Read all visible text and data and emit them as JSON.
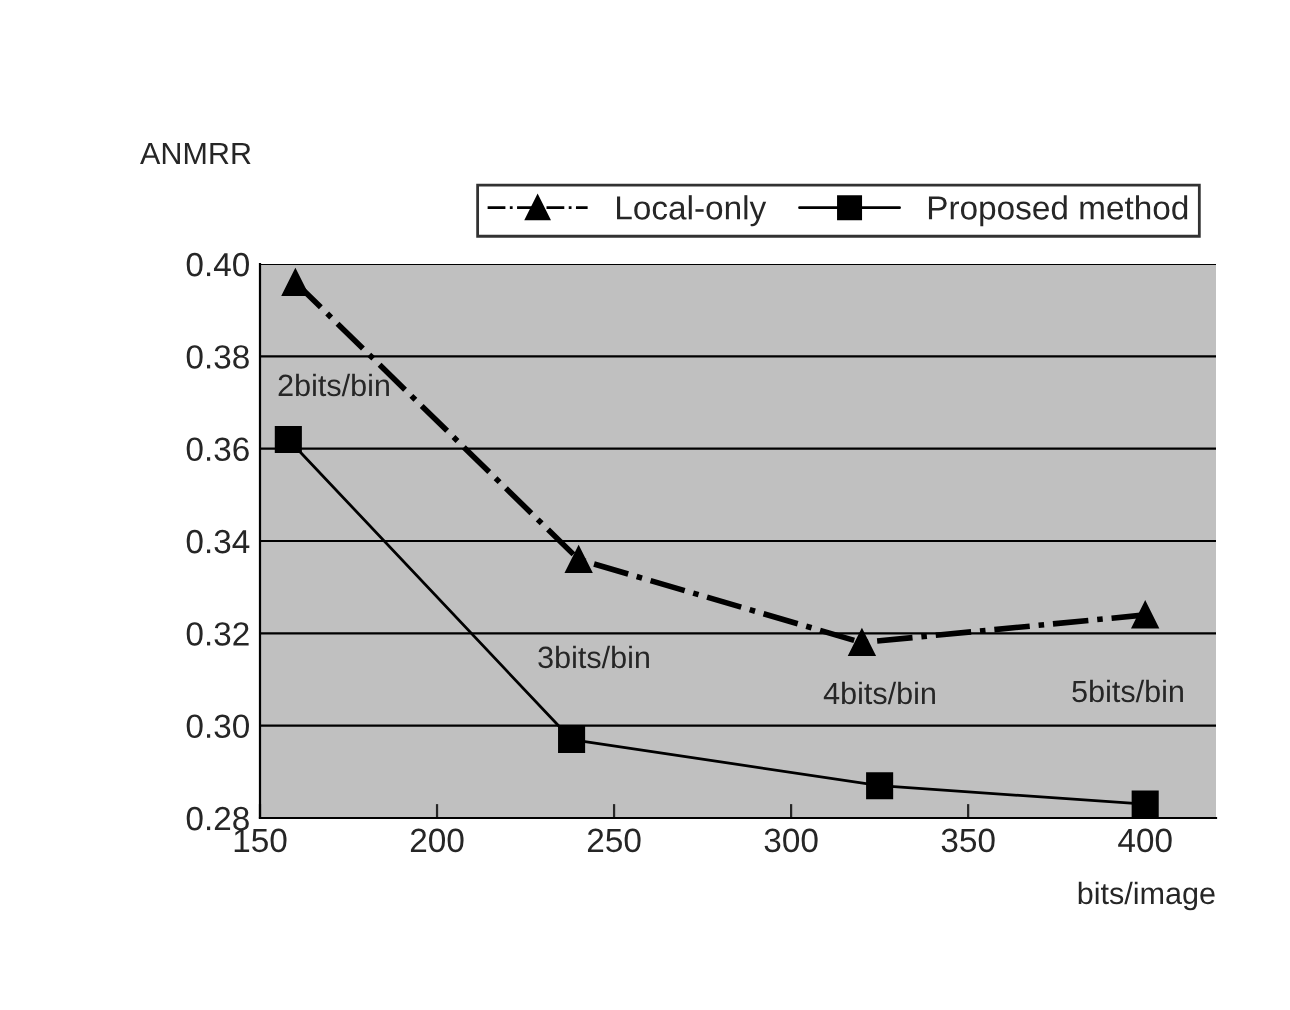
{
  "chart_data": {
    "type": "line",
    "ylabel": "ANMRR",
    "xlabel": "bits/image",
    "series": [
      {
        "name": "Local-only",
        "color": "#000000",
        "marker": "triangle",
        "line_style": "dashdot",
        "x": [
          160,
          240,
          320,
          400
        ],
        "values": [
          0.396,
          0.336,
          0.318,
          0.324
        ]
      },
      {
        "name": "Proposed method",
        "color": "#000000",
        "marker": "square",
        "line_style": "solid",
        "x": [
          158,
          238,
          325,
          400
        ],
        "values": [
          0.362,
          0.297,
          0.287,
          0.283
        ]
      }
    ],
    "xlim": [
      150,
      420
    ],
    "xticks": [
      150,
      200,
      250,
      300,
      350,
      400
    ],
    "ylim": [
      0.28,
      0.4
    ],
    "yticks": [
      {
        "value": 0.28,
        "label": "0.28"
      },
      {
        "value": 0.3,
        "label": "0.30"
      },
      {
        "value": 0.32,
        "label": "0.32"
      },
      {
        "value": 0.34,
        "label": "0.34"
      },
      {
        "value": 0.36,
        "label": "0.36"
      },
      {
        "value": 0.38,
        "label": "0.38"
      },
      {
        "value": 0.4,
        "label": "0.40"
      }
    ],
    "grid": "y",
    "legend": "top right",
    "annotations": [
      "2bits/bin",
      "3bits/bin",
      "4bits/bin",
      "5bits/bin"
    ]
  }
}
